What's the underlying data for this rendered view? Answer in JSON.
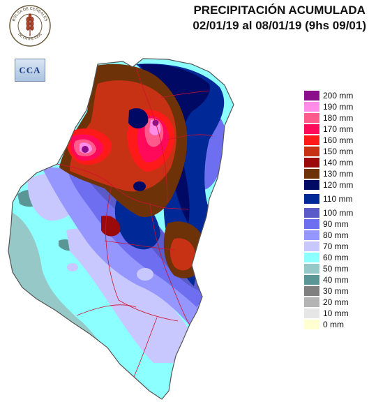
{
  "title": {
    "line1": "PRECIPITACIÓN ACUMULADA",
    "line2": "02/01/19 al 08/01/19 (9hs 09/01)"
  },
  "logos": {
    "bolsa_text_top": "BOLSA DE CEREALES",
    "bolsa_text_bottom": "DE ENTRE RIOS",
    "cca": "CCA"
  },
  "legend": {
    "items": [
      {
        "label": "200 mm",
        "color": "#8b0f8b"
      },
      {
        "label": "190 mm",
        "color": "#ff8ce6"
      },
      {
        "label": "180 mm",
        "color": "#ff5a8c"
      },
      {
        "label": "170 mm",
        "color": "#ff0a5a"
      },
      {
        "label": "160 mm",
        "color": "#ff1a1a"
      },
      {
        "label": "150 mm",
        "color": "#c83214"
      },
      {
        "label": "140 mm",
        "color": "#9b0a0a"
      },
      {
        "label": "130 mm",
        "color": "#6e3208"
      },
      {
        "label": "120 mm",
        "color": "#000a64"
      },
      {
        "label": "110 mm",
        "color": "#002896"
      },
      {
        "label": "100 mm",
        "color": "#5a5ac8"
      },
      {
        "label": "90 mm",
        "color": "#6e6ef0"
      },
      {
        "label": "80 mm",
        "color": "#9696ff"
      },
      {
        "label": "70 mm",
        "color": "#c8c8ff"
      },
      {
        "label": "60 mm",
        "color": "#8cffff"
      },
      {
        "label": "50 mm",
        "color": "#96c8c8"
      },
      {
        "label": "40 mm",
        "color": "#5a9696"
      },
      {
        "label": "30 mm",
        "color": "#808080"
      },
      {
        "label": "20 mm",
        "color": "#b4b4b4"
      },
      {
        "label": "10 mm",
        "color": "#e6e6e6"
      },
      {
        "label": "0 mm",
        "color": "#ffffd2"
      }
    ]
  }
}
